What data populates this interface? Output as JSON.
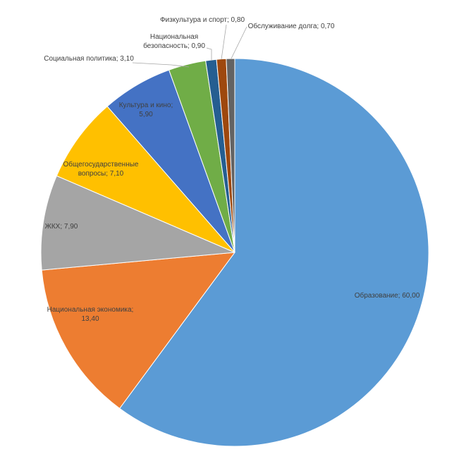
{
  "chart_data": {
    "type": "pie",
    "title": "",
    "legend": "none",
    "slices": [
      {
        "label": "Образование",
        "value": 60.0,
        "display": "60,00",
        "color": "#5b9bd5"
      },
      {
        "label": "Национальная экономика",
        "value": 13.4,
        "display": "13,40",
        "color": "#ed7d31"
      },
      {
        "label": "ЖКХ",
        "value": 7.9,
        "display": "7,90",
        "color": "#a5a5a5"
      },
      {
        "label": "Общегосударственные вопросы",
        "value": 7.1,
        "display": "7,10",
        "color": "#ffc000"
      },
      {
        "label": "Культура и кино",
        "value": 5.9,
        "display": "5,90",
        "color": "#4472c4"
      },
      {
        "label": "Социальная политика",
        "value": 3.1,
        "display": "3,10",
        "color": "#70ad47"
      },
      {
        "label": "Национальная безопасность",
        "value": 0.9,
        "display": "0,90",
        "color": "#255e91"
      },
      {
        "label": "Физкультура и спорт",
        "value": 0.8,
        "display": "0,80",
        "color": "#9e480e"
      },
      {
        "label": "Обслуживание долга",
        "value": 0.7,
        "display": "0,70",
        "color": "#636363"
      }
    ]
  }
}
